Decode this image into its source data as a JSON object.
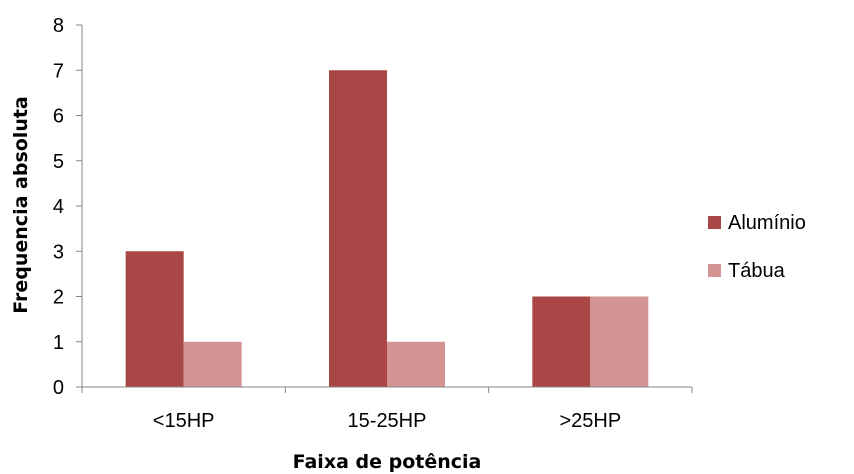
{
  "chart_data": {
    "type": "bar",
    "title": "",
    "xlabel": "Faixa de potência",
    "ylabel": "Frequencia absoluta",
    "categories": [
      "<15HP",
      "15-25HP",
      ">25HP"
    ],
    "series": [
      {
        "name": "Alumínio",
        "values": [
          3,
          7,
          2
        ],
        "color": "#a84745"
      },
      {
        "name": "Tábua",
        "values": [
          1,
          1,
          2
        ],
        "color": "#d49493"
      }
    ],
    "ylim": [
      0,
      8
    ],
    "yticks": [
      "0",
      "1",
      "2",
      "3",
      "4",
      "5",
      "6",
      "7",
      "8"
    ],
    "grid": false,
    "legend": "right",
    "axis_color": "#868686"
  }
}
